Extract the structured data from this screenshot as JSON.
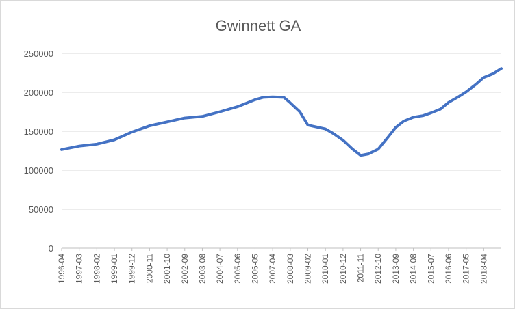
{
  "chart_data": {
    "type": "line",
    "title": "Gwinnett GA",
    "xlabel": "",
    "ylabel": "",
    "ylim": [
      0,
      250000
    ],
    "yticks": [
      "0",
      "50000",
      "100000",
      "150000",
      "200000",
      "250000"
    ],
    "x_tick_labels": [
      "1996-04",
      "1997-03",
      "1998-02",
      "1999-01",
      "1999-12",
      "2000-11",
      "2001-10",
      "2002-09",
      "2003-08",
      "2004-07",
      "2005-06",
      "2006-05",
      "2007-04",
      "2008-03",
      "2009-02",
      "2010-01",
      "2010-12",
      "2011-11",
      "2012-10",
      "2013-09",
      "2014-08",
      "2015-07",
      "2016-06",
      "2017-05",
      "2018-04"
    ],
    "grid": true,
    "legend": "none",
    "line_color": "#4472c4",
    "series": [
      {
        "x": [
          "1996-04",
          "1997-03",
          "1998-02",
          "1999-01",
          "1999-12",
          "2000-11",
          "2001-10",
          "2002-09",
          "2003-08",
          "2004-07",
          "2005-06",
          "2006-05",
          "2006-10",
          "2007-04",
          "2007-11",
          "2008-03",
          "2008-09",
          "2009-02",
          "2010-01",
          "2010-06",
          "2010-12",
          "2011-06",
          "2011-11",
          "2012-04",
          "2012-10",
          "2013-04",
          "2013-09",
          "2014-02",
          "2014-08",
          "2015-02",
          "2015-07",
          "2016-01",
          "2016-06",
          "2016-12",
          "2017-05",
          "2017-11",
          "2018-04",
          "2018-10",
          "2019-03"
        ],
        "values": [
          126500,
          131000,
          133500,
          139000,
          149000,
          157000,
          162000,
          167000,
          169000,
          175000,
          181500,
          190500,
          193500,
          194000,
          193500,
          186500,
          175000,
          158000,
          153000,
          147000,
          138500,
          127000,
          119000,
          121000,
          127000,
          142000,
          155000,
          163000,
          168000,
          170000,
          173500,
          178500,
          187000,
          194000,
          200500,
          210000,
          219000,
          224000,
          230500
        ]
      }
    ]
  }
}
